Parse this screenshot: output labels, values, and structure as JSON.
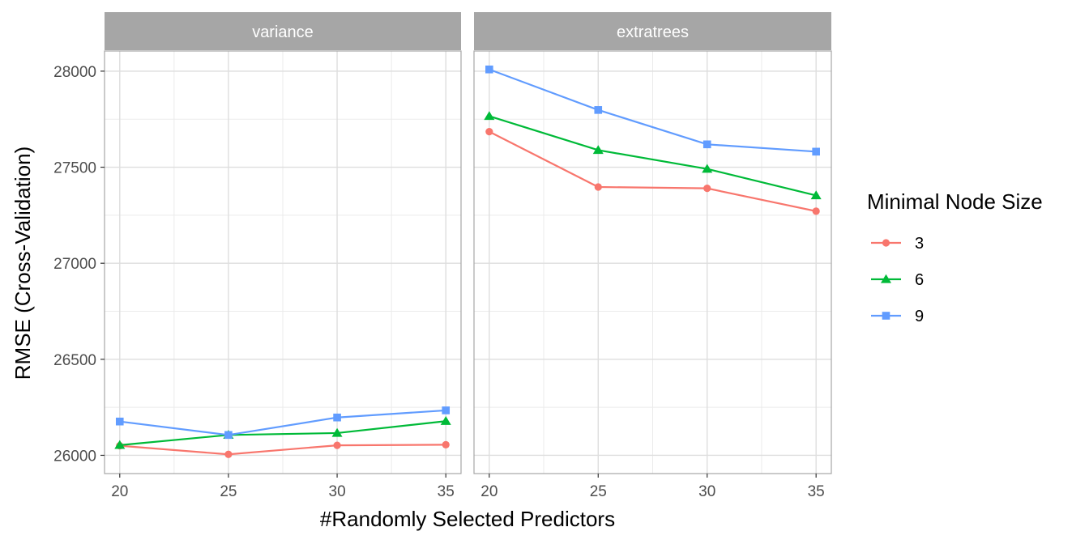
{
  "chart_data": {
    "type": "line",
    "xlabel": "#Randomly Selected Predictors",
    "ylabel": "RMSE (Cross-Validation)",
    "x_ticks": [
      "20",
      "25",
      "30",
      "35"
    ],
    "y_ticks": [
      "26000",
      "26500",
      "27000",
      "27500",
      "28000"
    ],
    "x": [
      20,
      25,
      30,
      35
    ],
    "xlim": [
      19.3,
      35.7
    ],
    "ylim": [
      25905,
      28105
    ],
    "grid": true,
    "legend_position": "right",
    "legend": {
      "title": "Minimal Node Size",
      "entries": [
        {
          "label": "3",
          "color": "#F8766D",
          "shape": "circle"
        },
        {
          "label": "6",
          "color": "#00BA38",
          "shape": "triangle"
        },
        {
          "label": "9",
          "color": "#619CFF",
          "shape": "square"
        }
      ]
    },
    "panels": [
      {
        "strip": "variance",
        "series": [
          {
            "name": "3",
            "values": [
              26050,
              26005,
              26052,
              26055
            ]
          },
          {
            "name": "6",
            "values": [
              26053,
              26106,
              26116,
              26178
            ]
          },
          {
            "name": "9",
            "values": [
              26176,
              26106,
              26197,
              26234
            ]
          }
        ]
      },
      {
        "strip": "extratrees",
        "series": [
          {
            "name": "3",
            "values": [
              27685,
              27397,
              27390,
              27271
            ]
          },
          {
            "name": "6",
            "values": [
              27766,
              27589,
              27491,
              27353
            ]
          },
          {
            "name": "9",
            "values": [
              28009,
              27798,
              27619,
              27581
            ]
          }
        ]
      }
    ]
  }
}
